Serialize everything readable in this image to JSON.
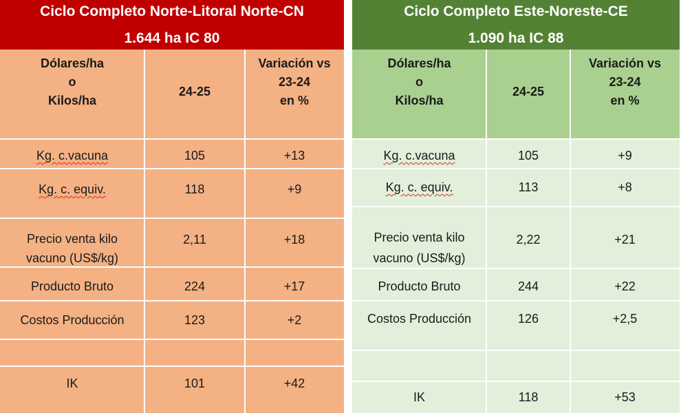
{
  "panels": [
    {
      "title": "Ciclo Completo Norte-Litoral Norte-CN",
      "subtitle": "1.644  ha IC 80",
      "headers": {
        "col1_line1": "Dólares/ha",
        "col1_line2": "o",
        "col1_line3": "Kilos/ha",
        "col2": "24-25",
        "col3_line1": "Variación vs",
        "col3_line2": "23-24",
        "col3_line3": "en %"
      },
      "rows": [
        {
          "label": "Kg. c.vacuna",
          "value": "105",
          "variation": "+13"
        },
        {
          "label": "Kg. c. equiv.",
          "value": "118",
          "variation": "+9"
        },
        {
          "label_line1": "Precio venta kilo",
          "label_line2": "vacuno (US$/kg)",
          "value": "2,11",
          "variation": "+18"
        },
        {
          "label": "Producto Bruto",
          "value": "224",
          "variation": "+17"
        },
        {
          "label": "Costos Producción",
          "value": "123",
          "variation": "+2"
        },
        {
          "label": "IK",
          "value": "101",
          "variation": "+42"
        }
      ]
    },
    {
      "title": "Ciclo Completo Este-Noreste-CE",
      "subtitle": "1.090  ha IC 88",
      "headers": {
        "col1_line1": "Dólares/ha",
        "col1_line2": "o",
        "col1_line3": "Kilos/ha",
        "col2": "24-25",
        "col3_line1": "Variación vs",
        "col3_line2": "23-24",
        "col3_line3": "en %"
      },
      "rows": [
        {
          "label": "Kg. c.vacuna",
          "value": "105",
          "variation": "+9"
        },
        {
          "label": "Kg. c. equiv.",
          "value": "113",
          "variation": "+8"
        },
        {
          "label_line1": "Precio venta kilo",
          "label_line2": "vacuno (US$/kg)",
          "value": "2,22",
          "variation": "+21"
        },
        {
          "label": "Producto Bruto",
          "value": "244",
          "variation": "+22"
        },
        {
          "label": "Costos Producción",
          "value": "126",
          "variation": "+2,5"
        },
        {
          "label": "IK",
          "value": "118",
          "variation": "+53"
        }
      ]
    }
  ]
}
